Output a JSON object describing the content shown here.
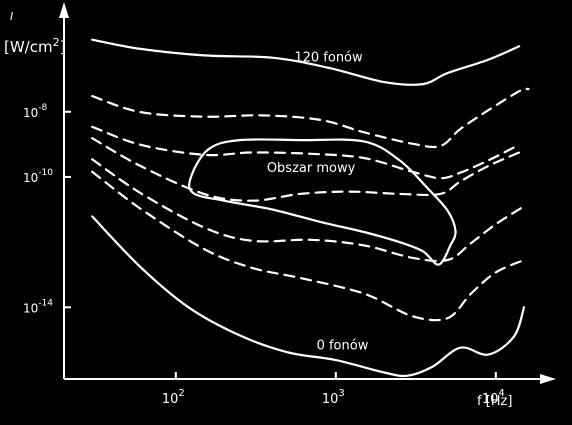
{
  "colors": {
    "background": "#000000",
    "foreground": "#ffffff"
  },
  "chart_data": {
    "type": "line",
    "title": "",
    "xlabel": "f [Hz]",
    "ylabel": "I [W/cm²]",
    "x_scale": "log",
    "xlim": [
      20,
      20000
    ],
    "ylim": [
      -16.2,
      -5
    ],
    "grid": false,
    "x_ticks": [
      {
        "value": 100,
        "base": "10",
        "exp": "2"
      },
      {
        "value": 1000,
        "base": "10",
        "exp": "3"
      },
      {
        "value": 10000,
        "base": "10",
        "exp": "4"
      }
    ],
    "y_ticks": [
      {
        "value": -8,
        "base": "10",
        "exp": "-8"
      },
      {
        "value": -10,
        "base": "10",
        "exp": "-10"
      },
      {
        "value": -14,
        "base": "10",
        "exp": "-14"
      }
    ],
    "series": [
      {
        "name": "120 fonów",
        "style": "solid",
        "points": [
          [
            30,
            -5.79
          ],
          [
            60,
            -6.07
          ],
          [
            150,
            -6.27
          ],
          [
            400,
            -6.34
          ],
          [
            900,
            -6.65
          ],
          [
            2000,
            -7.09
          ],
          [
            3500,
            -7.15
          ],
          [
            5000,
            -6.81
          ],
          [
            9000,
            -6.4
          ],
          [
            14000,
            -5.99
          ]
        ]
      },
      {
        "name": "",
        "style": "dashed",
        "points": [
          [
            30,
            -7.52
          ],
          [
            60,
            -8.01
          ],
          [
            150,
            -8.15
          ],
          [
            350,
            -8.11
          ],
          [
            800,
            -8.25
          ],
          [
            1500,
            -8.63
          ],
          [
            3000,
            -8.98
          ],
          [
            4500,
            -9.05
          ],
          [
            6000,
            -8.53
          ],
          [
            9000,
            -7.95
          ],
          [
            14000,
            -7.37
          ],
          [
            16000,
            -7.3
          ]
        ]
      },
      {
        "name": "",
        "style": "dashed",
        "points": [
          [
            30,
            -8.46
          ],
          [
            60,
            -9.01
          ],
          [
            150,
            -9.32
          ],
          [
            300,
            -9.25
          ],
          [
            700,
            -9.29
          ],
          [
            1500,
            -9.42
          ],
          [
            3000,
            -9.84
          ],
          [
            4500,
            -10.04
          ],
          [
            6000,
            -9.87
          ],
          [
            9000,
            -9.49
          ],
          [
            14000,
            -9.01
          ]
        ]
      },
      {
        "name": "",
        "style": "dashed",
        "points": [
          [
            30,
            -8.81
          ],
          [
            60,
            -9.66
          ],
          [
            150,
            -10.52
          ],
          [
            300,
            -10.73
          ],
          [
            600,
            -10.52
          ],
          [
            1200,
            -10.45
          ],
          [
            2500,
            -10.52
          ],
          [
            4500,
            -10.52
          ],
          [
            6000,
            -10.14
          ],
          [
            9000,
            -9.66
          ],
          [
            14000,
            -9.25
          ]
        ]
      },
      {
        "name": "",
        "style": "dashed",
        "points": [
          [
            30,
            -9.46
          ],
          [
            60,
            -10.49
          ],
          [
            150,
            -11.55
          ],
          [
            300,
            -11.96
          ],
          [
            700,
            -11.93
          ],
          [
            1500,
            -12.1
          ],
          [
            3000,
            -12.48
          ],
          [
            5000,
            -12.55
          ],
          [
            7000,
            -12.03
          ],
          [
            10000,
            -11.45
          ],
          [
            15000,
            -10.9
          ]
        ]
      },
      {
        "name": "",
        "style": "dashed",
        "points": [
          [
            30,
            -9.84
          ],
          [
            60,
            -10.97
          ],
          [
            150,
            -12.21
          ],
          [
            300,
            -12.79
          ],
          [
            600,
            -13.1
          ],
          [
            1500,
            -13.58
          ],
          [
            3000,
            -14.27
          ],
          [
            5000,
            -14.33
          ],
          [
            7000,
            -13.58
          ],
          [
            10000,
            -12.93
          ],
          [
            15000,
            -12.55
          ]
        ]
      },
      {
        "name": "0 fonów",
        "style": "solid",
        "points": [
          [
            30,
            -11.21
          ],
          [
            60,
            -12.76
          ],
          [
            120,
            -14.0
          ],
          [
            250,
            -14.86
          ],
          [
            500,
            -15.38
          ],
          [
            1000,
            -15.62
          ],
          [
            2000,
            -16.0
          ],
          [
            2800,
            -16.1
          ],
          [
            4000,
            -15.83
          ],
          [
            6000,
            -15.24
          ],
          [
            9000,
            -15.45
          ],
          [
            13000,
            -14.89
          ],
          [
            15000,
            -14.0
          ]
        ]
      }
    ],
    "regions": [
      {
        "name": "Obszar mowy",
        "points": [
          [
            125,
            -9.97
          ],
          [
            160,
            -9.15
          ],
          [
            250,
            -8.87
          ],
          [
            600,
            -8.87
          ],
          [
            1500,
            -8.91
          ],
          [
            2500,
            -9.49
          ],
          [
            3800,
            -10.38
          ],
          [
            5000,
            -11.04
          ],
          [
            5600,
            -11.66
          ],
          [
            5200,
            -12.1
          ],
          [
            4400,
            -12.69
          ],
          [
            3500,
            -12.28
          ],
          [
            2500,
            -12.0
          ],
          [
            1500,
            -11.69
          ],
          [
            800,
            -11.38
          ],
          [
            400,
            -11.0
          ],
          [
            200,
            -10.73
          ],
          [
            128,
            -10.49
          ]
        ]
      }
    ],
    "annotations": [
      {
        "text": "120 fonów",
        "x": 900,
        "y": -6.45
      },
      {
        "text": "Obszar mowy",
        "x": 700,
        "y": -9.85
      },
      {
        "text": "0 fonów",
        "x": 1100,
        "y": -15.3
      }
    ]
  }
}
